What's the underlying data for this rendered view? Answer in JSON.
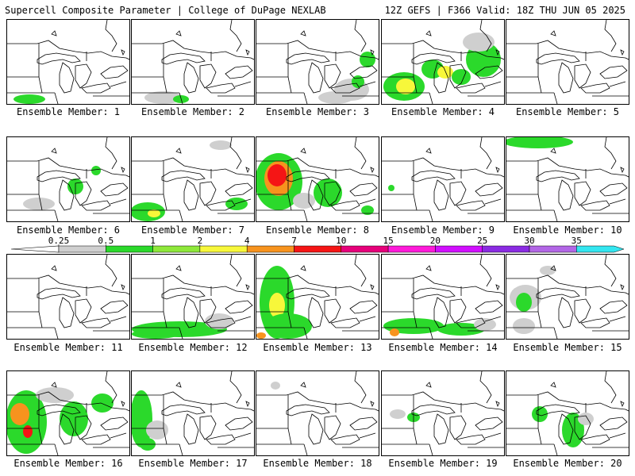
{
  "header": {
    "left": "Supercell Composite Parameter | College of DuPage NEXLAB",
    "right": "12Z GEFS | F366 Valid: 18Z THU JUN 05 2025"
  },
  "colorbar": {
    "ticks": [
      "0.25",
      "0.5",
      "1",
      "2",
      "4",
      "7",
      "10",
      "15",
      "20",
      "25",
      "30",
      "35"
    ],
    "colors": [
      "#cfcfcf",
      "#2bd92b",
      "#8ee83a",
      "#f7f73a",
      "#f7931e",
      "#f51515",
      "#e6007a",
      "#ff1ad9",
      "#d10fff",
      "#8a2be2",
      "#b266e6",
      "#33e6f0"
    ]
  },
  "panels": [
    {
      "label": "Ensemble Member: 1",
      "blobs": [
        [
          28,
          100,
          20,
          6,
          1
        ]
      ]
    },
    {
      "label": "Ensemble Member: 2",
      "blobs": [
        [
          40,
          98,
          24,
          8,
          0
        ],
        [
          62,
          100,
          10,
          5,
          1
        ]
      ]
    },
    {
      "label": "Ensemble Member: 3",
      "blobs": [
        [
          120,
          88,
          22,
          14,
          0
        ],
        [
          140,
          50,
          10,
          10,
          1
        ],
        [
          128,
          78,
          8,
          8,
          1
        ],
        [
          100,
          98,
          22,
          8,
          0
        ]
      ]
    },
    {
      "label": "Ensemble Member: 4",
      "blobs": [
        [
          28,
          84,
          26,
          18,
          1
        ],
        [
          30,
          84,
          12,
          10,
          3
        ],
        [
          64,
          62,
          14,
          12,
          1
        ],
        [
          80,
          66,
          10,
          8,
          3
        ],
        [
          128,
          50,
          22,
          22,
          1
        ],
        [
          122,
          28,
          20,
          12,
          0
        ],
        [
          100,
          72,
          12,
          10,
          1
        ]
      ]
    },
    {
      "label": "Ensemble Member: 5",
      "blobs": []
    },
    {
      "label": "Ensemble Member: 6",
      "blobs": [
        [
          86,
          62,
          10,
          10,
          1
        ],
        [
          112,
          42,
          6,
          6,
          1
        ],
        [
          40,
          84,
          20,
          8,
          0
        ]
      ]
    },
    {
      "label": "Ensemble Member: 7",
      "blobs": [
        [
          20,
          94,
          22,
          12,
          1
        ],
        [
          28,
          96,
          8,
          5,
          3
        ],
        [
          132,
          84,
          14,
          8,
          1
        ],
        [
          112,
          10,
          14,
          6,
          0
        ]
      ]
    },
    {
      "label": "Ensemble Member: 8",
      "blobs": [
        [
          28,
          56,
          30,
          36,
          1
        ],
        [
          28,
          52,
          18,
          22,
          4
        ],
        [
          26,
          48,
          12,
          14,
          5
        ],
        [
          90,
          70,
          18,
          18,
          1
        ],
        [
          60,
          80,
          14,
          10,
          0
        ],
        [
          140,
          92,
          8,
          6,
          1
        ]
      ]
    },
    {
      "label": "Ensemble Member: 9",
      "blobs": [
        [
          12,
          64,
          4,
          4,
          1
        ]
      ]
    },
    {
      "label": "Ensemble Member: 10",
      "blobs": [
        [
          40,
          6,
          44,
          8,
          1
        ]
      ]
    },
    {
      "label": "Ensemble Member: 11",
      "blobs": []
    },
    {
      "label": "Ensemble Member: 12",
      "blobs": [
        [
          60,
          94,
          60,
          10,
          1
        ],
        [
          30,
          100,
          30,
          6,
          1
        ],
        [
          110,
          84,
          18,
          10,
          0
        ]
      ]
    },
    {
      "label": "Ensemble Member: 13",
      "blobs": [
        [
          26,
          60,
          22,
          46,
          1
        ],
        [
          26,
          64,
          10,
          16,
          3
        ],
        [
          40,
          90,
          30,
          16,
          1
        ],
        [
          6,
          102,
          6,
          4,
          4
        ]
      ]
    },
    {
      "label": "Ensemble Member: 14",
      "blobs": [
        [
          40,
          90,
          38,
          10,
          1
        ],
        [
          100,
          94,
          30,
          8,
          1
        ],
        [
          16,
          98,
          6,
          5,
          4
        ],
        [
          130,
          88,
          14,
          8,
          0
        ]
      ]
    },
    {
      "label": "Ensemble Member: 15",
      "blobs": [
        [
          24,
          54,
          20,
          16,
          0
        ],
        [
          22,
          60,
          10,
          12,
          1
        ],
        [
          22,
          90,
          14,
          10,
          0
        ],
        [
          52,
          20,
          10,
          6,
          0
        ]
      ]
    },
    {
      "label": "Ensemble Member: 16",
      "blobs": [
        [
          24,
          64,
          26,
          40,
          1
        ],
        [
          16,
          54,
          12,
          14,
          4
        ],
        [
          26,
          76,
          6,
          8,
          5
        ],
        [
          84,
          60,
          18,
          22,
          1
        ],
        [
          120,
          40,
          14,
          12,
          1
        ],
        [
          60,
          30,
          24,
          10,
          0
        ]
      ]
    },
    {
      "label": "Ensemble Member: 17",
      "blobs": [
        [
          12,
          60,
          14,
          36,
          1
        ],
        [
          32,
          74,
          14,
          12,
          0
        ],
        [
          20,
          92,
          10,
          8,
          1
        ]
      ]
    },
    {
      "label": "Ensemble Member: 18",
      "blobs": [
        [
          24,
          18,
          6,
          5,
          0
        ]
      ]
    },
    {
      "label": "Ensemble Member: 19",
      "blobs": [
        [
          20,
          54,
          10,
          6,
          0
        ],
        [
          40,
          58,
          8,
          6,
          1
        ]
      ]
    },
    {
      "label": "Ensemble Member: 20",
      "blobs": [
        [
          84,
          74,
          14,
          22,
          1
        ],
        [
          42,
          54,
          10,
          10,
          1
        ],
        [
          100,
          60,
          10,
          8,
          0
        ]
      ]
    }
  ]
}
